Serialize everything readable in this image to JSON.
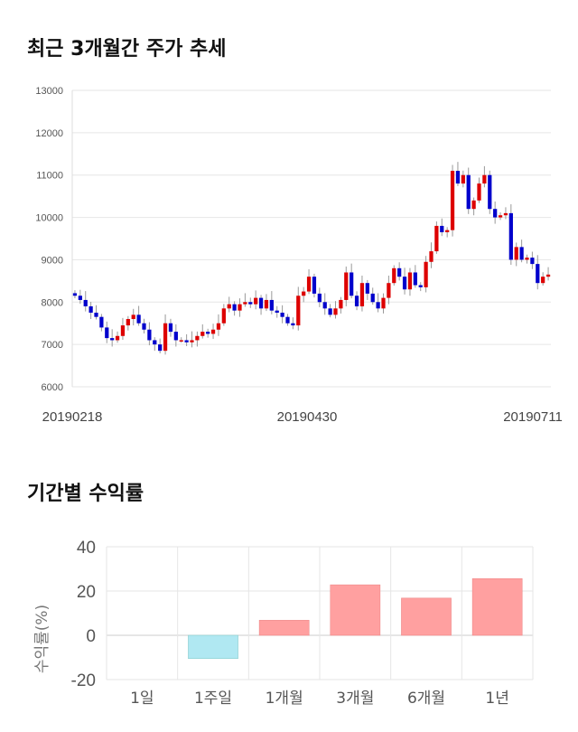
{
  "titles": {
    "price_trend": "최근 3개월간 주가 추세",
    "period_return": "기간별 수익률"
  },
  "colors": {
    "up": "#dd0000",
    "down": "#0000cc",
    "wick": "#999999",
    "bar_positive": "#ffa0a0",
    "bar_negative": "#b0e8f2",
    "grid": "#e6e6e6"
  },
  "chart_data": [
    {
      "type": "candlestick",
      "title": "최근 3개월간 주가 추세",
      "ylim": [
        6000,
        13000
      ],
      "yticks": [
        "13000",
        "12000",
        "11000",
        "10000",
        "9000",
        "8000",
        "7000",
        "6000"
      ],
      "xticks": [
        "20190218",
        "20190430",
        "20190711"
      ],
      "grid": true,
      "legend": "none",
      "series_close": [
        8150,
        8050,
        7900,
        7750,
        7650,
        7400,
        7150,
        7100,
        7200,
        7450,
        7600,
        7700,
        7500,
        7350,
        7100,
        7000,
        6850,
        7500,
        7300,
        7100,
        7100,
        7050,
        7100,
        7200,
        7300,
        7250,
        7350,
        7500,
        7850,
        7950,
        7800,
        7950,
        8000,
        7950,
        8100,
        7850,
        8050,
        7800,
        7750,
        7650,
        7500,
        7450,
        8150,
        8250,
        8600,
        8200,
        8000,
        7850,
        7700,
        7850,
        8050,
        8700,
        8150,
        7900,
        8450,
        8200,
        8000,
        7850,
        8100,
        8450,
        8800,
        8600,
        8300,
        8700,
        8400,
        8350,
        8950,
        9200,
        9800,
        9650,
        9700,
        11100,
        10800,
        11000,
        10200,
        10400,
        10800,
        11000,
        10200,
        10000,
        10050,
        10100,
        9000,
        9300,
        9000,
        9050,
        8900,
        8450,
        8600,
        8650
      ],
      "ohlc_note": "daily candles, red = close above open, blue = close below open"
    },
    {
      "type": "bar",
      "title": "기간별 수익률",
      "ylabel": "수익률(%)",
      "ylim": [
        -20,
        40
      ],
      "yticks": [
        "40",
        "20",
        "0",
        "-20"
      ],
      "categories": [
        "1일",
        "1주일",
        "1개월",
        "3개월",
        "6개월",
        "1년"
      ],
      "values": [
        0,
        -10.5,
        6.8,
        22.8,
        16.8,
        25.6
      ],
      "grid": true,
      "legend": "none"
    }
  ]
}
